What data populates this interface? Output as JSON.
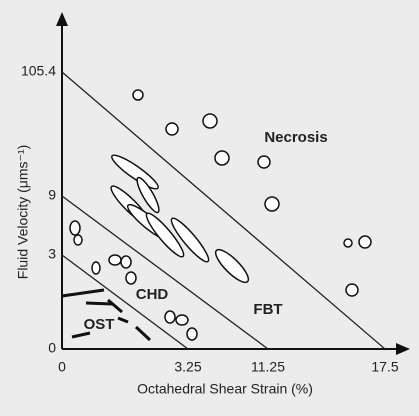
{
  "axes": {
    "y_title": "Fluid Velocity (μms⁻¹)",
    "x_title": "Octahedral Shear Strain (%)",
    "y_ticks": [
      "105.4",
      "9",
      "3",
      "0"
    ],
    "x_ticks": [
      "0",
      "3.25",
      "11.25",
      "17.5"
    ]
  },
  "regions": [
    "Necrosis",
    "FBT",
    "CHD",
    "OST"
  ]
}
